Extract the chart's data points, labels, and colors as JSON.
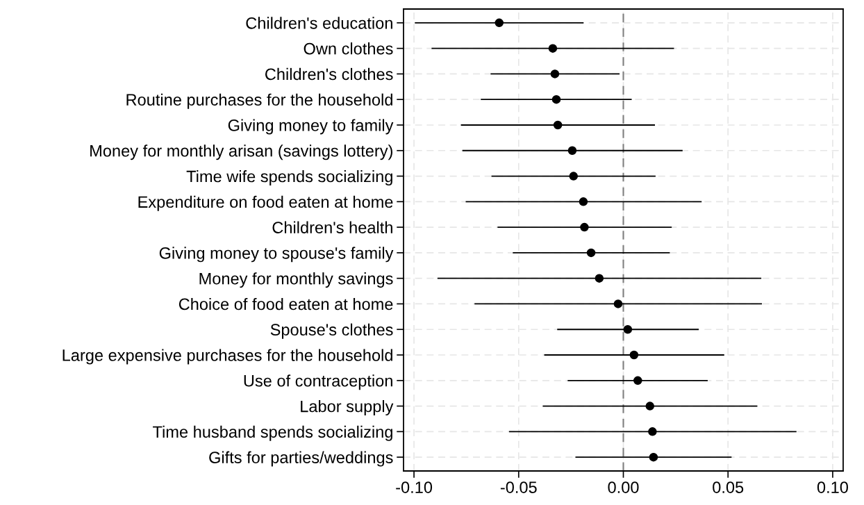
{
  "chart_data": {
    "type": "scatter",
    "orientation": "horizontal",
    "categories": [
      "Children's education",
      "Own clothes",
      "Children's clothes",
      "Routine purchases for the household",
      "Giving money to family",
      "Money for monthly arisan (savings lottery)",
      "Time wife spends socializing",
      "Expenditure on food eaten at home",
      "Children's health",
      "Giving money to spouse's family",
      "Money for monthly savings",
      "Choice of food eaten at home",
      "Spouse's clothes",
      "Large expensive purchases for the household",
      "Use of contraception",
      "Labor supply",
      "Time husband spends socializing",
      "Gifts for parties/weddings"
    ],
    "values": [
      -0.0593,
      -0.0337,
      -0.0327,
      -0.032,
      -0.0313,
      -0.0244,
      -0.0238,
      -0.0191,
      -0.0186,
      -0.0154,
      -0.0115,
      -0.0025,
      0.0021,
      0.0051,
      0.0069,
      0.0127,
      0.0139,
      0.0144
    ],
    "errors": [
      [
        -0.0996,
        -0.019
      ],
      [
        -0.0916,
        0.0242
      ],
      [
        -0.0634,
        -0.0018
      ],
      [
        -0.0681,
        0.004
      ],
      [
        -0.0776,
        0.0151
      ],
      [
        -0.0769,
        0.0283
      ],
      [
        -0.063,
        0.0154
      ],
      [
        -0.0753,
        0.0374
      ],
      [
        -0.0601,
        0.0231
      ],
      [
        -0.0528,
        0.0222
      ],
      [
        -0.0888,
        0.0659
      ],
      [
        -0.0711,
        0.0662
      ],
      [
        -0.0316,
        0.036
      ],
      [
        -0.0378,
        0.0482
      ],
      [
        -0.0266,
        0.0403
      ],
      [
        -0.0385,
        0.064
      ],
      [
        -0.0546,
        0.0827
      ],
      [
        -0.0229,
        0.0517
      ]
    ],
    "color": "#000000",
    "marker": "circle",
    "xlim": [
      -0.105,
      0.105
    ],
    "xticks": [
      {
        "value": -0.1,
        "label": "-0.10"
      },
      {
        "value": -0.05,
        "label": "-0.05"
      },
      {
        "value": 0,
        "label": "0.00"
      },
      {
        "value": 0.05,
        "label": "0.05"
      },
      {
        "value": 0.1,
        "label": "0.10"
      }
    ],
    "ref_lines": [
      {
        "axis": "x",
        "value": 0,
        "color": "#808080",
        "line_style": "dashed"
      }
    ],
    "grid": true
  }
}
